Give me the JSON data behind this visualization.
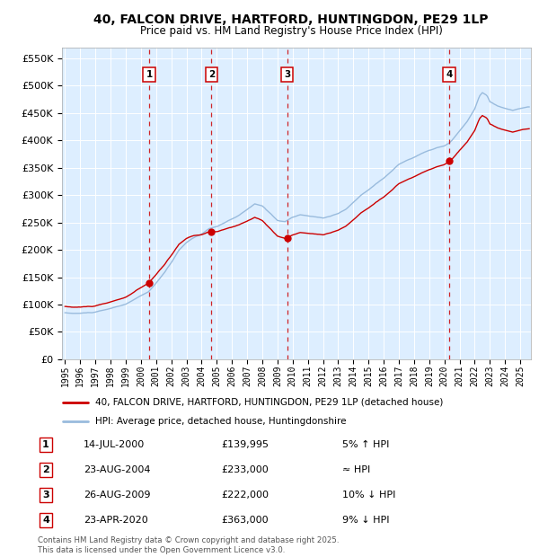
{
  "title": "40, FALCON DRIVE, HARTFORD, HUNTINGDON, PE29 1LP",
  "subtitle": "Price paid vs. HM Land Registry's House Price Index (HPI)",
  "legend_line1": "40, FALCON DRIVE, HARTFORD, HUNTINGDON, PE29 1LP (detached house)",
  "legend_line2": "HPI: Average price, detached house, Huntingdonshire",
  "footer1": "Contains HM Land Registry data © Crown copyright and database right 2025.",
  "footer2": "This data is licensed under the Open Government Licence v3.0.",
  "red_color": "#cc0000",
  "blue_color": "#99bbdd",
  "background_color": "#ddeeff",
  "sale_points": [
    {
      "num": 1,
      "date": "14-JUL-2000",
      "price": 139995,
      "note": "5% ↑ HPI",
      "year": 2000.54
    },
    {
      "num": 2,
      "date": "23-AUG-2004",
      "price": 233000,
      "note": "≈ HPI",
      "year": 2004.65
    },
    {
      "num": 3,
      "date": "26-AUG-2009",
      "price": 222000,
      "note": "10% ↓ HPI",
      "year": 2009.65
    },
    {
      "num": 4,
      "date": "23-APR-2020",
      "price": 363000,
      "note": "9% ↓ HPI",
      "year": 2020.31
    }
  ],
  "ylim": [
    0,
    570000
  ],
  "yticks": [
    0,
    50000,
    100000,
    150000,
    200000,
    250000,
    300000,
    350000,
    400000,
    450000,
    500000,
    550000
  ],
  "xlim_start": 1994.8,
  "xlim_end": 2025.7
}
